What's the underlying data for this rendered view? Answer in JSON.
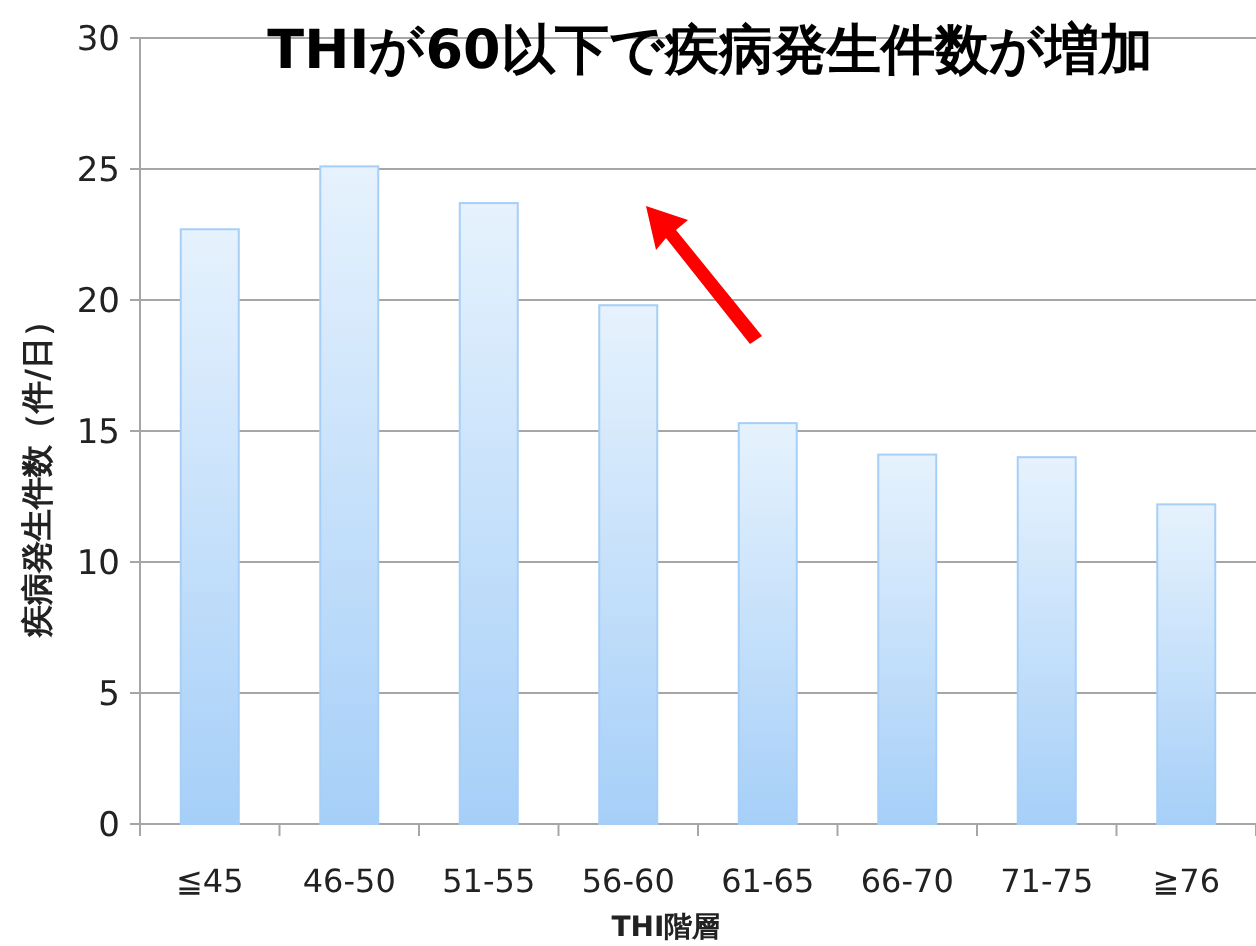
{
  "chart_data": {
    "type": "bar",
    "title": "THIが60以下で疾病発生件数が増加",
    "xlabel": "THI階層",
    "ylabel": "疾病発生件数（件/日）",
    "categories": [
      "≦45",
      "46-50",
      "51-55",
      "56-60",
      "61-65",
      "66-70",
      "71-75",
      "≧76"
    ],
    "values": [
      22.7,
      25.1,
      23.7,
      19.8,
      15.3,
      14.1,
      14.0,
      12.2
    ],
    "color": "#a6cff8",
    "ylim": [
      0,
      30
    ],
    "yticks": [
      0,
      5,
      10,
      15,
      20,
      25,
      30
    ],
    "grid": "y"
  }
}
